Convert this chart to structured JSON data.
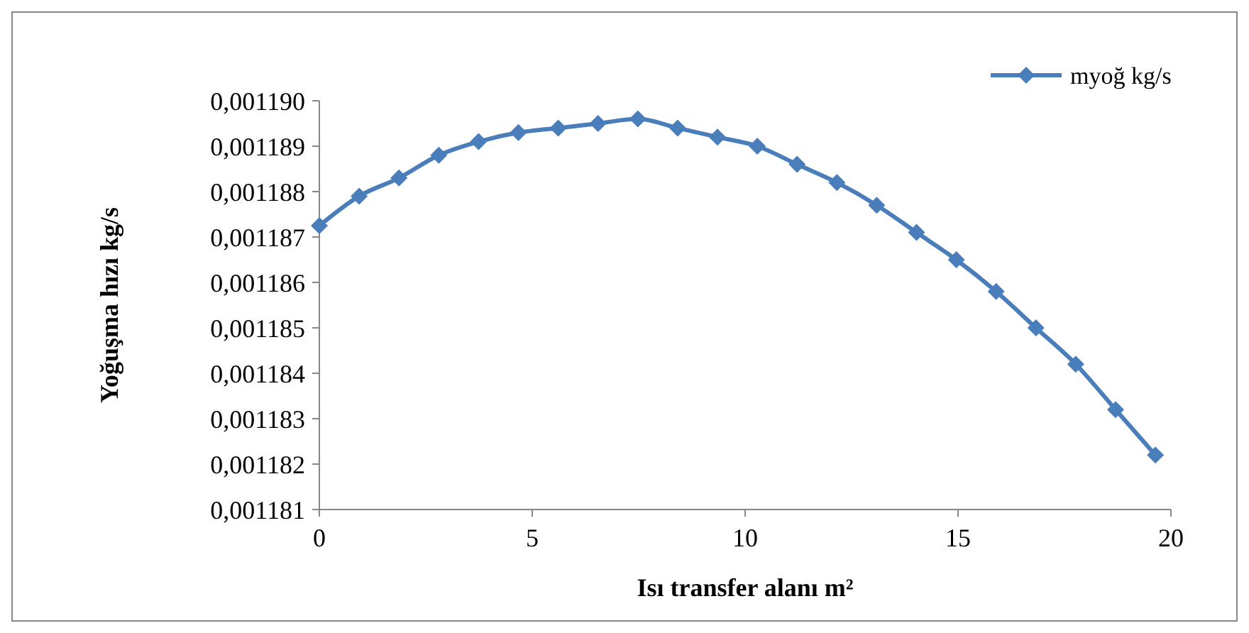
{
  "chart_data": {
    "type": "line",
    "xlabel": "Isı transfer alanı m²",
    "ylabel": "Yoğuşma hızı kg/s",
    "x": [
      0,
      0.935,
      1.87,
      2.805,
      3.74,
      4.675,
      5.61,
      6.545,
      7.48,
      8.415,
      9.35,
      10.285,
      11.22,
      12.155,
      13.09,
      14.025,
      14.96,
      15.895,
      16.83,
      17.765,
      18.7,
      19.635
    ],
    "series": [
      {
        "name": "myoğ kg/s",
        "color": "#4a7ebb",
        "values": [
          0.00118725,
          0.0011879,
          0.0011883,
          0.0011888,
          0.0011891,
          0.0011893,
          0.0011894,
          0.0011895,
          0.0011896,
          0.0011894,
          0.0011892,
          0.001189,
          0.0011886,
          0.0011882,
          0.0011877,
          0.0011871,
          0.0011865,
          0.0011858,
          0.001185,
          0.0011842,
          0.0011832,
          0.0011822
        ]
      }
    ],
    "xlim": [
      0,
      20
    ],
    "xticks": [
      0,
      5,
      10,
      15,
      20
    ],
    "ylim": [
      0.001181,
      0.00119
    ],
    "yticks": [
      {
        "value": 0.001181,
        "label": "0,001181"
      },
      {
        "value": 0.001182,
        "label": "0,001182"
      },
      {
        "value": 0.001183,
        "label": "0,001183"
      },
      {
        "value": 0.001184,
        "label": "0,001184"
      },
      {
        "value": 0.001185,
        "label": "0,001185"
      },
      {
        "value": 0.001186,
        "label": "0,001186"
      },
      {
        "value": 0.001187,
        "label": "0,001187"
      },
      {
        "value": 0.001188,
        "label": "0,001188"
      },
      {
        "value": 0.001189,
        "label": "0,001189"
      },
      {
        "value": 0.00119,
        "label": "0,001190"
      }
    ],
    "grid": false,
    "legend": "top right",
    "marker": "diamond",
    "line_style": "solid"
  }
}
